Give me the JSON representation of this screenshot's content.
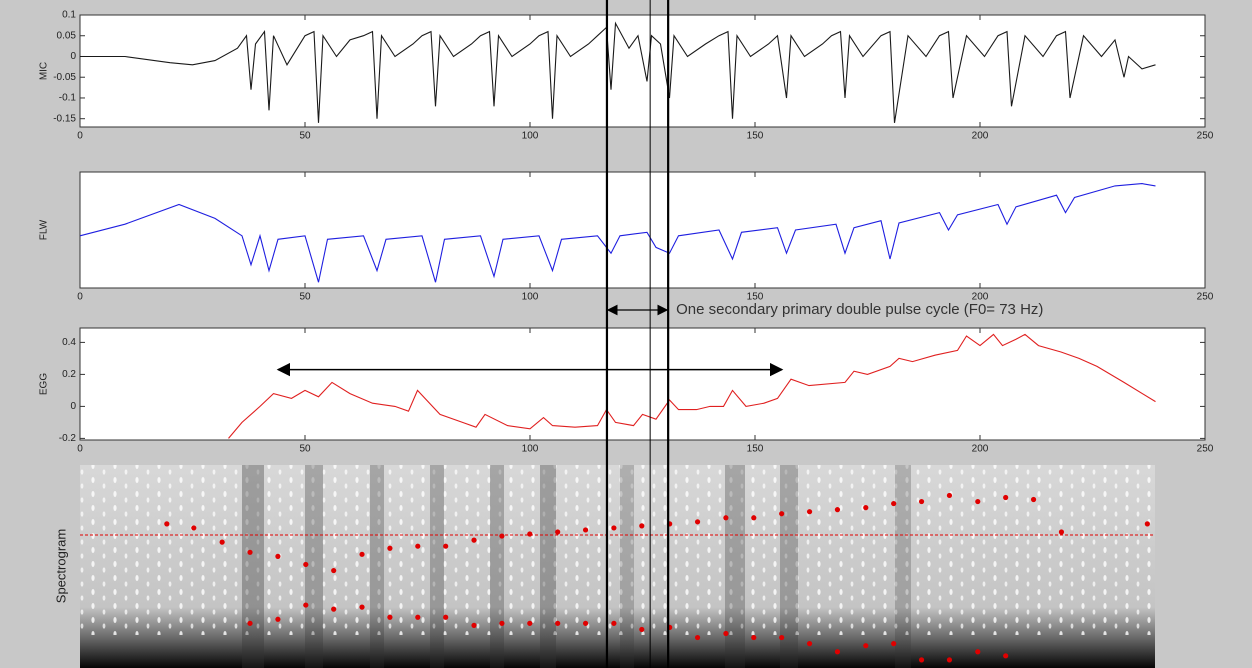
{
  "chart_data": [
    {
      "type": "line",
      "ylabel": "MIC",
      "color": "#1a1a1a",
      "xlim": [
        0,
        250
      ],
      "xticks": [
        0,
        50,
        100,
        150,
        200,
        250
      ],
      "ylim": [
        -0.17,
        0.1
      ],
      "yticks": [
        -0.15,
        -0.1,
        -0.05,
        0,
        0.05,
        0.1
      ],
      "x": [
        0,
        10,
        20,
        25,
        30,
        35,
        37,
        38,
        39,
        41,
        42,
        43,
        46,
        50,
        52,
        53,
        54,
        57,
        60,
        63,
        65,
        66,
        67,
        70,
        74,
        76,
        78,
        79,
        80,
        83,
        87,
        89,
        91,
        92,
        93,
        96,
        100,
        102,
        104,
        105,
        106,
        109,
        113,
        115,
        117,
        118,
        119,
        122,
        124,
        126,
        127,
        129,
        131,
        132,
        135,
        139,
        142,
        144,
        145,
        146,
        149,
        153,
        155,
        157,
        158,
        161,
        165,
        167,
        169,
        170,
        171,
        174,
        178,
        180,
        181,
        184,
        188,
        191,
        193,
        194,
        197,
        201,
        204,
        206,
        207,
        210,
        214,
        217,
        219,
        220,
        223,
        227,
        230,
        232,
        233,
        236,
        239
      ],
      "values": [
        0,
        0,
        -0.015,
        -0.02,
        -0.01,
        0.02,
        0.05,
        -0.08,
        0.03,
        0.06,
        -0.13,
        0.05,
        -0.02,
        0.05,
        0.06,
        -0.16,
        0.05,
        0.0,
        0.04,
        0.05,
        0.06,
        -0.15,
        0.05,
        0.0,
        0.03,
        0.05,
        0.06,
        -0.12,
        0.05,
        0.0,
        0.03,
        0.05,
        0.06,
        -0.12,
        0.05,
        0.0,
        0.03,
        0.05,
        0.06,
        -0.15,
        0.05,
        0.0,
        0.03,
        0.05,
        0.07,
        -0.08,
        0.08,
        0.02,
        0.05,
        -0.06,
        0.05,
        0.03,
        -0.1,
        0.05,
        0.0,
        0.03,
        0.05,
        0.06,
        -0.15,
        0.05,
        0.0,
        0.03,
        0.05,
        -0.1,
        0.05,
        0.0,
        0.03,
        0.05,
        0.06,
        -0.1,
        0.05,
        0.0,
        0.05,
        0.06,
        -0.16,
        0.05,
        0.0,
        0.05,
        0.06,
        -0.1,
        0.05,
        0.0,
        0.05,
        0.06,
        -0.12,
        0.05,
        0.0,
        0.05,
        0.06,
        -0.1,
        0.05,
        0.0,
        0.04,
        -0.05,
        0.0,
        -0.03,
        -0.02
      ]
    },
    {
      "type": "line",
      "ylabel": "FLW",
      "color": "#1f1fe0",
      "xlim": [
        0,
        250
      ],
      "xticks": [
        0,
        50,
        100,
        150,
        200,
        250
      ],
      "ylim": [
        0,
        1
      ],
      "x": [
        0,
        10,
        22,
        30,
        36,
        38,
        40,
        42,
        44,
        50,
        53,
        55,
        63,
        66,
        68,
        76,
        79,
        81,
        89,
        92,
        94,
        102,
        105,
        107,
        115,
        118,
        120,
        126,
        128,
        131,
        133,
        142,
        145,
        147,
        155,
        157,
        159,
        168,
        170,
        172,
        178,
        180,
        182,
        191,
        193,
        195,
        204,
        206,
        208,
        217,
        219,
        221,
        230,
        236,
        239
      ],
      "values": [
        0.45,
        0.55,
        0.72,
        0.6,
        0.45,
        0.2,
        0.45,
        0.15,
        0.42,
        0.45,
        0.05,
        0.42,
        0.45,
        0.15,
        0.42,
        0.45,
        0.05,
        0.42,
        0.45,
        0.1,
        0.42,
        0.45,
        0.15,
        0.42,
        0.45,
        0.3,
        0.45,
        0.48,
        0.35,
        0.3,
        0.45,
        0.5,
        0.25,
        0.48,
        0.52,
        0.3,
        0.5,
        0.55,
        0.3,
        0.52,
        0.58,
        0.25,
        0.56,
        0.65,
        0.5,
        0.63,
        0.72,
        0.55,
        0.7,
        0.8,
        0.65,
        0.78,
        0.88,
        0.9,
        0.88
      ],
      "annotation": {
        "text": "One secondary primary double pulse cycle (F0= 73 Hz)",
        "x": [
          117.1,
          130.7
        ]
      }
    },
    {
      "type": "line",
      "ylabel": "EGG",
      "color": "#e02020",
      "xlim": [
        0,
        250
      ],
      "xticks": [
        0,
        50,
        100,
        150,
        200,
        250
      ],
      "ylim": [
        -0.21,
        0.49
      ],
      "yticks": [
        -0.2,
        0,
        0.2,
        0.4
      ],
      "x": [
        33,
        36,
        40,
        43,
        47,
        50,
        53,
        56,
        60,
        65,
        70,
        73,
        75,
        80,
        85,
        88,
        90,
        95,
        100,
        103,
        105,
        110,
        115,
        117,
        119,
        123,
        125,
        128,
        131,
        133,
        137,
        140,
        143,
        145,
        148,
        152,
        155,
        158,
        162,
        170,
        172,
        175,
        180,
        182,
        185,
        190,
        195,
        197,
        200,
        203,
        205,
        208,
        210,
        213,
        218,
        222,
        226,
        232,
        239
      ],
      "values": [
        -0.2,
        -0.1,
        0.0,
        0.08,
        0.05,
        0.1,
        0.06,
        0.15,
        0.08,
        0.02,
        0.0,
        -0.03,
        0.1,
        -0.05,
        -0.1,
        -0.13,
        -0.05,
        -0.12,
        -0.14,
        -0.07,
        -0.12,
        -0.13,
        -0.12,
        -0.02,
        -0.1,
        -0.12,
        -0.05,
        -0.08,
        0.04,
        -0.02,
        -0.02,
        0.0,
        0.0,
        0.1,
        0.0,
        0.02,
        0.05,
        0.17,
        0.13,
        0.15,
        0.22,
        0.2,
        0.25,
        0.3,
        0.28,
        0.32,
        0.35,
        0.44,
        0.38,
        0.45,
        0.38,
        0.42,
        0.45,
        0.38,
        0.34,
        0.3,
        0.25,
        0.15,
        0.03
      ],
      "arrow": {
        "x": [
          44,
          156
        ],
        "y": 0.23
      }
    },
    {
      "type": "scatter",
      "ylabel": "Spectrogram",
      "color": "#e00000",
      "xlim": [
        0,
        239
      ],
      "ylim": [
        0,
        1
      ],
      "reference_line": 0.655,
      "series": [
        {
          "x": [
            19.3,
            25.3,
            31.6,
            37.8,
            44,
            50.2,
            56.4,
            62.7,
            68.9,
            75.1,
            81.3,
            87.6,
            93.8,
            100,
            106.2,
            112.4,
            118.7,
            124.9,
            131.1,
            137.3,
            143.6,
            149.8,
            156,
            162.2,
            168.4,
            174.7,
            180.9,
            187.1,
            193.3,
            199.6,
            205.8,
            212,
            218.2,
            237.3
          ],
          "values": [
            0.71,
            0.69,
            0.62,
            0.57,
            0.55,
            0.51,
            0.48,
            0.56,
            0.59,
            0.6,
            0.6,
            0.63,
            0.65,
            0.66,
            0.67,
            0.68,
            0.69,
            0.7,
            0.71,
            0.72,
            0.74,
            0.74,
            0.76,
            0.77,
            0.78,
            0.79,
            0.81,
            0.82,
            0.85,
            0.82,
            0.84,
            0.83,
            0.67,
            0.71
          ]
        },
        {
          "x": [
            37.8,
            44,
            50.2,
            56.4,
            62.7,
            68.9,
            75.1,
            81.3,
            87.6,
            93.8,
            100,
            106.2,
            112.4,
            118.7,
            124.9,
            131.1,
            137.3,
            143.6,
            149.8,
            156,
            162.2,
            168.4,
            174.7,
            180.9,
            187.1,
            193.3,
            199.6,
            205.8
          ],
          "values": [
            0.22,
            0.24,
            0.31,
            0.29,
            0.3,
            0.25,
            0.25,
            0.25,
            0.21,
            0.22,
            0.22,
            0.22,
            0.22,
            0.22,
            0.19,
            0.2,
            0.15,
            0.17,
            0.15,
            0.15,
            0.12,
            0.08,
            0.11,
            0.12,
            0.04,
            0.04,
            0.08,
            0.06
          ]
        }
      ]
    }
  ],
  "cursors": [
    117.1,
    126.7,
    130.7
  ]
}
